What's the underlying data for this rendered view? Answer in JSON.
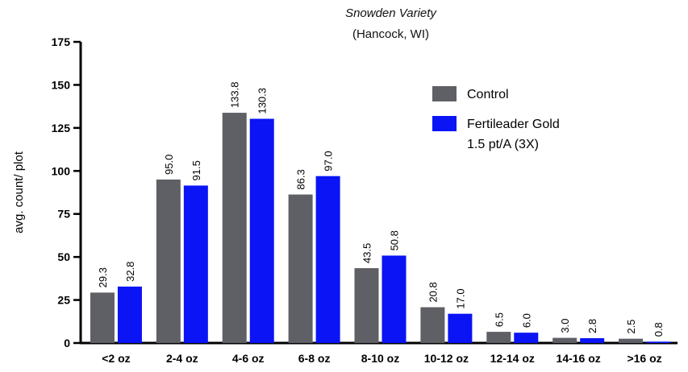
{
  "chart_data": {
    "type": "bar",
    "title_cropped": "",
    "subtitle": "Snowden Variety",
    "subtitle2": "(Hancock, WI)",
    "xlabel": "",
    "ylabel": "avg. count/ plot",
    "ylim": [
      0,
      175
    ],
    "yticks": [
      "0",
      "25",
      "50",
      "75",
      "100",
      "125",
      "150",
      "175"
    ],
    "categories": [
      "<2 oz",
      "2-4 oz",
      "4-6 oz",
      "6-8 oz",
      "8-10 oz",
      "10-12 oz",
      "12-14 oz",
      "14-16 oz",
      ">16 oz"
    ],
    "series": [
      {
        "name": "Control",
        "color": "#5f6066",
        "values": [
          29.3,
          95.0,
          133.8,
          86.3,
          43.5,
          20.8,
          6.5,
          3.0,
          2.5
        ],
        "labels": [
          "29.3",
          "95.0",
          "133.8",
          "86.3",
          "43.5",
          "20.8",
          "6.5",
          "3.0",
          "2.5"
        ]
      },
      {
        "name": "Fertileader Gold",
        "name_line2": "1.5 pt/A (3X)",
        "color": "#0a14f5",
        "values": [
          32.8,
          91.5,
          130.3,
          97.0,
          50.8,
          17.0,
          6.0,
          2.8,
          0.8
        ],
        "labels": [
          "32.8",
          "91.5",
          "130.3",
          "97.0",
          "50.8",
          "17.0",
          "6.0",
          "2.8",
          "0.8"
        ]
      }
    ],
    "grid": false,
    "legend_position": "top-right"
  }
}
